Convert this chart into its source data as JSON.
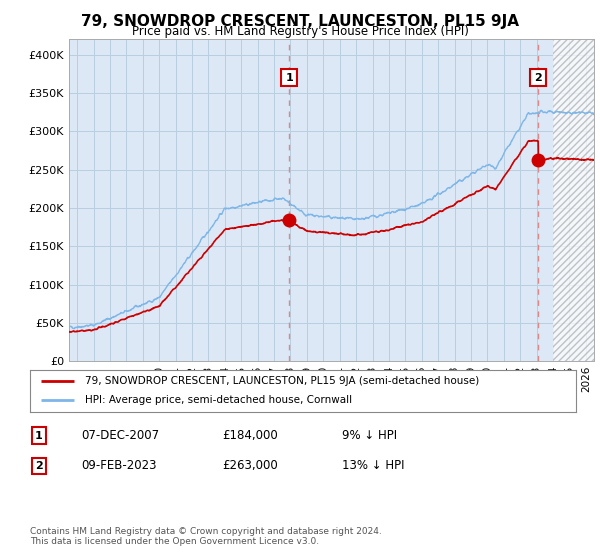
{
  "title": "79, SNOWDROP CRESCENT, LAUNCESTON, PL15 9JA",
  "subtitle": "Price paid vs. HM Land Registry's House Price Index (HPI)",
  "ylabel_ticks": [
    "£0",
    "£50K",
    "£100K",
    "£150K",
    "£200K",
    "£250K",
    "£300K",
    "£350K",
    "£400K"
  ],
  "ytick_values": [
    0,
    50000,
    100000,
    150000,
    200000,
    250000,
    300000,
    350000,
    400000
  ],
  "ylim": [
    0,
    420000
  ],
  "xlim_start": 1994.5,
  "xlim_end": 2026.5,
  "hatch_start": 2024.0,
  "sale1_x": 2007.92,
  "sale1_y": 184000,
  "sale1_label": "1",
  "sale2_x": 2023.1,
  "sale2_y": 263000,
  "sale2_label": "2",
  "sale_color": "#cc0000",
  "hpi_color": "#7eb6e8",
  "dashed_line_color": "#dd8888",
  "legend_entry1": "79, SNOWDROP CRESCENT, LAUNCESTON, PL15 9JA (semi-detached house)",
  "legend_entry2": "HPI: Average price, semi-detached house, Cornwall",
  "table_row1": [
    "1",
    "07-DEC-2007",
    "£184,000",
    "9% ↓ HPI"
  ],
  "table_row2": [
    "2",
    "09-FEB-2023",
    "£263,000",
    "13% ↓ HPI"
  ],
  "footnote": "Contains HM Land Registry data © Crown copyright and database right 2024.\nThis data is licensed under the Open Government Licence v3.0.",
  "background_color": "#ffffff",
  "plot_bg_color": "#dce8f5",
  "grid_color": "#b8cfe0"
}
